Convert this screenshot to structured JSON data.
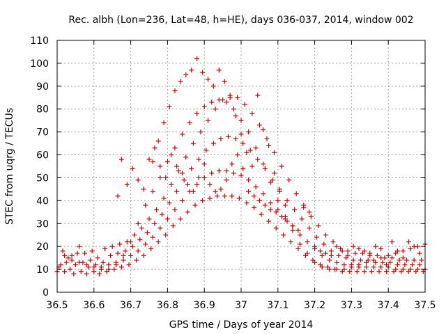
{
  "chart_data": {
    "type": "scatter",
    "title": "Rec. albh (Lon=236, Lat=48, h=HE), days 036-037, 2014, window 002",
    "xlabel": "GPS time / Days of year 2014",
    "ylabel": "STEC from uqrg / TECUs",
    "xlim": [
      36.5,
      37.5
    ],
    "ylim": [
      0,
      110
    ],
    "xticks": [
      36.5,
      36.6,
      36.7,
      36.8,
      36.9,
      37,
      37.1,
      37.2,
      37.3,
      37.4,
      37.5
    ],
    "xtick_labels": [
      "36.5",
      "36.6",
      "36.7",
      "36.8",
      "36.9",
      "37",
      "37.1",
      "37.2",
      "37.3",
      "37.4",
      "37.5"
    ],
    "yticks": [
      0,
      10,
      20,
      30,
      40,
      50,
      60,
      70,
      80,
      90,
      100,
      110
    ],
    "ytick_labels": [
      "0",
      "10",
      "20",
      "30",
      "40",
      "50",
      "60",
      "70",
      "80",
      "90",
      "100",
      "110"
    ],
    "grid": true,
    "marker": "plus",
    "color": "#cc0000",
    "points": [
      [
        36.5,
        9
      ],
      [
        36.505,
        11
      ],
      [
        36.51,
        12
      ],
      [
        36.515,
        18
      ],
      [
        36.52,
        9
      ],
      [
        36.525,
        13
      ],
      [
        36.53,
        15
      ],
      [
        36.535,
        10
      ],
      [
        36.54,
        16
      ],
      [
        36.545,
        8
      ],
      [
        36.55,
        12
      ],
      [
        36.555,
        17
      ],
      [
        36.56,
        20
      ],
      [
        36.565,
        9
      ],
      [
        36.57,
        13
      ],
      [
        36.575,
        17
      ],
      [
        36.58,
        8
      ],
      [
        36.585,
        11
      ],
      [
        36.59,
        14
      ],
      [
        36.595,
        18
      ],
      [
        36.6,
        9
      ],
      [
        36.605,
        12
      ],
      [
        36.61,
        15
      ],
      [
        36.615,
        8
      ],
      [
        36.62,
        11
      ],
      [
        36.625,
        13
      ],
      [
        36.63,
        19
      ],
      [
        36.635,
        9
      ],
      [
        36.64,
        12
      ],
      [
        36.645,
        16
      ],
      [
        36.65,
        20
      ],
      [
        36.655,
        10
      ],
      [
        36.66,
        13
      ],
      [
        36.665,
        17
      ],
      [
        36.67,
        21
      ],
      [
        36.675,
        11
      ],
      [
        36.68,
        14
      ],
      [
        36.685,
        18
      ],
      [
        36.69,
        22
      ],
      [
        36.695,
        12
      ],
      [
        36.7,
        16
      ],
      [
        36.705,
        20
      ],
      [
        36.71,
        25
      ],
      [
        36.715,
        14
      ],
      [
        36.72,
        18
      ],
      [
        36.725,
        23
      ],
      [
        36.73,
        28
      ],
      [
        36.735,
        16
      ],
      [
        36.74,
        21
      ],
      [
        36.745,
        26
      ],
      [
        36.75,
        32
      ],
      [
        36.755,
        19
      ],
      [
        36.76,
        24
      ],
      [
        36.765,
        30
      ],
      [
        36.77,
        36
      ],
      [
        36.775,
        22
      ],
      [
        36.78,
        28
      ],
      [
        36.785,
        34
      ],
      [
        36.79,
        41
      ],
      [
        36.795,
        25
      ],
      [
        36.8,
        32
      ],
      [
        36.805,
        39
      ],
      [
        36.81,
        47
      ],
      [
        36.815,
        29
      ],
      [
        36.82,
        36
      ],
      [
        36.825,
        44
      ],
      [
        36.83,
        53
      ],
      [
        36.835,
        32
      ],
      [
        36.84,
        40
      ],
      [
        36.845,
        49
      ],
      [
        36.85,
        59
      ],
      [
        36.855,
        35
      ],
      [
        36.86,
        44
      ],
      [
        36.865,
        54
      ],
      [
        36.87,
        65
      ],
      [
        36.875,
        38
      ],
      [
        36.88,
        47
      ],
      [
        36.885,
        58
      ],
      [
        36.89,
        70
      ],
      [
        36.895,
        40
      ],
      [
        36.9,
        50
      ],
      [
        36.905,
        62
      ],
      [
        36.91,
        75
      ],
      [
        36.915,
        41
      ],
      [
        36.92,
        52
      ],
      [
        36.925,
        65
      ],
      [
        36.93,
        80
      ],
      [
        36.935,
        42
      ],
      [
        36.94,
        53
      ],
      [
        36.945,
        67
      ],
      [
        36.95,
        84
      ],
      [
        36.955,
        42
      ],
      [
        36.96,
        53
      ],
      [
        36.965,
        68
      ],
      [
        36.97,
        86
      ],
      [
        36.975,
        42
      ],
      [
        36.98,
        52
      ],
      [
        36.985,
        67
      ],
      [
        36.99,
        85
      ],
      [
        36.995,
        41
      ],
      [
        37.0,
        51
      ],
      [
        37.005,
        65
      ],
      [
        37.01,
        82
      ],
      [
        37.015,
        39
      ],
      [
        37.02,
        49
      ],
      [
        37.025,
        62
      ],
      [
        37.03,
        78
      ],
      [
        37.035,
        37
      ],
      [
        37.04,
        46
      ],
      [
        37.045,
        58
      ],
      [
        37.05,
        73
      ],
      [
        37.055,
        34
      ],
      [
        37.06,
        43
      ],
      [
        37.065,
        54
      ],
      [
        37.07,
        67
      ],
      [
        37.075,
        31
      ],
      [
        37.08,
        39
      ],
      [
        37.085,
        49
      ],
      [
        37.09,
        61
      ],
      [
        37.095,
        28
      ],
      [
        37.1,
        36
      ],
      [
        37.105,
        44
      ],
      [
        37.11,
        55
      ],
      [
        37.115,
        25
      ],
      [
        37.12,
        32
      ],
      [
        37.125,
        40
      ],
      [
        37.13,
        49
      ],
      [
        37.135,
        22
      ],
      [
        37.14,
        29
      ],
      [
        37.145,
        36
      ],
      [
        37.15,
        43
      ],
      [
        37.155,
        19
      ],
      [
        37.16,
        25
      ],
      [
        37.165,
        32
      ],
      [
        37.17,
        38
      ],
      [
        37.175,
        16
      ],
      [
        37.18,
        22
      ],
      [
        37.185,
        28
      ],
      [
        37.19,
        33
      ],
      [
        37.195,
        14
      ],
      [
        37.2,
        19
      ],
      [
        37.205,
        24
      ],
      [
        37.21,
        29
      ],
      [
        37.215,
        12
      ],
      [
        37.22,
        16
      ],
      [
        37.225,
        21
      ],
      [
        37.23,
        25
      ],
      [
        37.235,
        11
      ],
      [
        37.24,
        14
      ],
      [
        37.245,
        18
      ],
      [
        37.25,
        22
      ],
      [
        37.255,
        10
      ],
      [
        37.26,
        13
      ],
      [
        37.265,
        16
      ],
      [
        37.27,
        19
      ],
      [
        37.275,
        9
      ],
      [
        37.28,
        12
      ],
      [
        37.285,
        15
      ],
      [
        37.29,
        18
      ],
      [
        37.295,
        9
      ],
      [
        37.3,
        12
      ],
      [
        37.305,
        14
      ],
      [
        37.31,
        17
      ],
      [
        37.315,
        9
      ],
      [
        37.32,
        11
      ],
      [
        37.325,
        14
      ],
      [
        37.33,
        17
      ],
      [
        37.335,
        9
      ],
      [
        37.34,
        11
      ],
      [
        37.345,
        14
      ],
      [
        37.35,
        16
      ],
      [
        37.355,
        9
      ],
      [
        37.36,
        11
      ],
      [
        37.365,
        13
      ],
      [
        37.37,
        16
      ],
      [
        37.375,
        9
      ],
      [
        37.38,
        11
      ],
      [
        37.385,
        13
      ],
      [
        37.39,
        15
      ],
      [
        37.395,
        9
      ],
      [
        37.4,
        11
      ],
      [
        37.405,
        13
      ],
      [
        37.41,
        15
      ],
      [
        37.415,
        9
      ],
      [
        37.42,
        10
      ],
      [
        37.425,
        12
      ],
      [
        37.43,
        14
      ],
      [
        37.435,
        9
      ],
      [
        37.44,
        10
      ],
      [
        37.445,
        12
      ],
      [
        37.45,
        14
      ],
      [
        37.455,
        9
      ],
      [
        37.46,
        10
      ],
      [
        37.465,
        12
      ],
      [
        37.47,
        14
      ],
      [
        37.475,
        9
      ],
      [
        37.48,
        10
      ],
      [
        37.485,
        12
      ],
      [
        37.49,
        14
      ],
      [
        37.495,
        9
      ],
      [
        37.5,
        10
      ],
      [
        36.52,
        16
      ],
      [
        36.54,
        14
      ],
      [
        36.56,
        13
      ],
      [
        36.58,
        12
      ],
      [
        36.6,
        11
      ],
      [
        36.62,
        10
      ],
      [
        36.64,
        10
      ],
      [
        36.66,
        12
      ],
      [
        36.68,
        16
      ],
      [
        36.7,
        22
      ],
      [
        36.72,
        30
      ],
      [
        36.74,
        38
      ],
      [
        36.76,
        44
      ],
      [
        36.78,
        50
      ],
      [
        36.8,
        57
      ],
      [
        36.82,
        63
      ],
      [
        36.84,
        69
      ],
      [
        36.86,
        74
      ],
      [
        36.88,
        78
      ],
      [
        36.9,
        81
      ],
      [
        36.92,
        83
      ],
      [
        36.94,
        84
      ],
      [
        36.96,
        83
      ],
      [
        36.98,
        80
      ],
      [
        37.0,
        75
      ],
      [
        37.02,
        70
      ],
      [
        37.04,
        63
      ],
      [
        37.06,
        56
      ],
      [
        37.08,
        48
      ],
      [
        37.1,
        40
      ],
      [
        37.12,
        33
      ],
      [
        37.14,
        27
      ],
      [
        37.16,
        21
      ],
      [
        37.18,
        17
      ],
      [
        37.2,
        13
      ],
      [
        37.22,
        11
      ],
      [
        37.24,
        10
      ],
      [
        37.26,
        10
      ],
      [
        37.28,
        10
      ],
      [
        37.3,
        11
      ],
      [
        37.32,
        12
      ],
      [
        37.34,
        13
      ],
      [
        37.36,
        14
      ],
      [
        37.38,
        15
      ],
      [
        37.4,
        16
      ],
      [
        37.42,
        17
      ],
      [
        37.44,
        18
      ],
      [
        37.46,
        19
      ],
      [
        37.48,
        20
      ],
      [
        37.5,
        21
      ],
      [
        36.76,
        57
      ],
      [
        36.775,
        66
      ],
      [
        36.79,
        74
      ],
      [
        36.805,
        81
      ],
      [
        36.82,
        88
      ],
      [
        36.835,
        92
      ],
      [
        36.85,
        95
      ],
      [
        36.865,
        97
      ],
      [
        36.88,
        102
      ],
      [
        36.895,
        96
      ],
      [
        36.91,
        93
      ],
      [
        36.925,
        90
      ],
      [
        36.94,
        97
      ],
      [
        36.955,
        92
      ],
      [
        36.97,
        85
      ],
      [
        36.985,
        77
      ],
      [
        37.0,
        69
      ],
      [
        37.015,
        61
      ],
      [
        37.03,
        55
      ],
      [
        37.045,
        86
      ],
      [
        37.06,
        71
      ],
      [
        37.075,
        64
      ],
      [
        37.09,
        52
      ],
      [
        37.105,
        45
      ],
      [
        37.12,
        38
      ],
      [
        36.665,
        42
      ],
      [
        36.675,
        58
      ],
      [
        36.69,
        47
      ],
      [
        36.705,
        54
      ],
      [
        36.72,
        49
      ],
      [
        36.735,
        45
      ],
      [
        36.75,
        58
      ],
      [
        36.765,
        63
      ],
      [
        36.78,
        55
      ],
      [
        36.795,
        50
      ],
      [
        36.81,
        60
      ],
      [
        36.825,
        55
      ],
      [
        36.84,
        52
      ],
      [
        36.855,
        47
      ],
      [
        36.87,
        44
      ],
      [
        36.885,
        50
      ],
      [
        36.9,
        56
      ],
      [
        36.915,
        47
      ],
      [
        36.93,
        44
      ],
      [
        36.945,
        45
      ],
      [
        36.96,
        49
      ],
      [
        36.975,
        56
      ],
      [
        36.99,
        60
      ],
      [
        37.005,
        54
      ],
      [
        37.02,
        44
      ],
      [
        37.035,
        42
      ],
      [
        37.05,
        40
      ],
      [
        37.065,
        38
      ],
      [
        37.08,
        36
      ],
      [
        37.095,
        35
      ],
      [
        37.11,
        33
      ],
      [
        37.125,
        31
      ],
      [
        37.14,
        29
      ],
      [
        37.155,
        27
      ],
      [
        37.17,
        37
      ],
      [
        37.185,
        35
      ],
      [
        37.2,
        20
      ],
      [
        37.215,
        18
      ],
      [
        37.23,
        17
      ],
      [
        37.245,
        16
      ],
      [
        37.26,
        20
      ],
      [
        37.275,
        18
      ],
      [
        37.29,
        16
      ],
      [
        37.305,
        20
      ],
      [
        37.32,
        19
      ],
      [
        37.335,
        18
      ],
      [
        37.35,
        17
      ],
      [
        37.365,
        20
      ],
      [
        37.38,
        19
      ],
      [
        37.395,
        12
      ],
      [
        37.41,
        22
      ],
      [
        37.425,
        18
      ],
      [
        37.44,
        15
      ],
      [
        37.455,
        22
      ],
      [
        37.47,
        20
      ],
      [
        37.485,
        17
      ]
    ]
  }
}
